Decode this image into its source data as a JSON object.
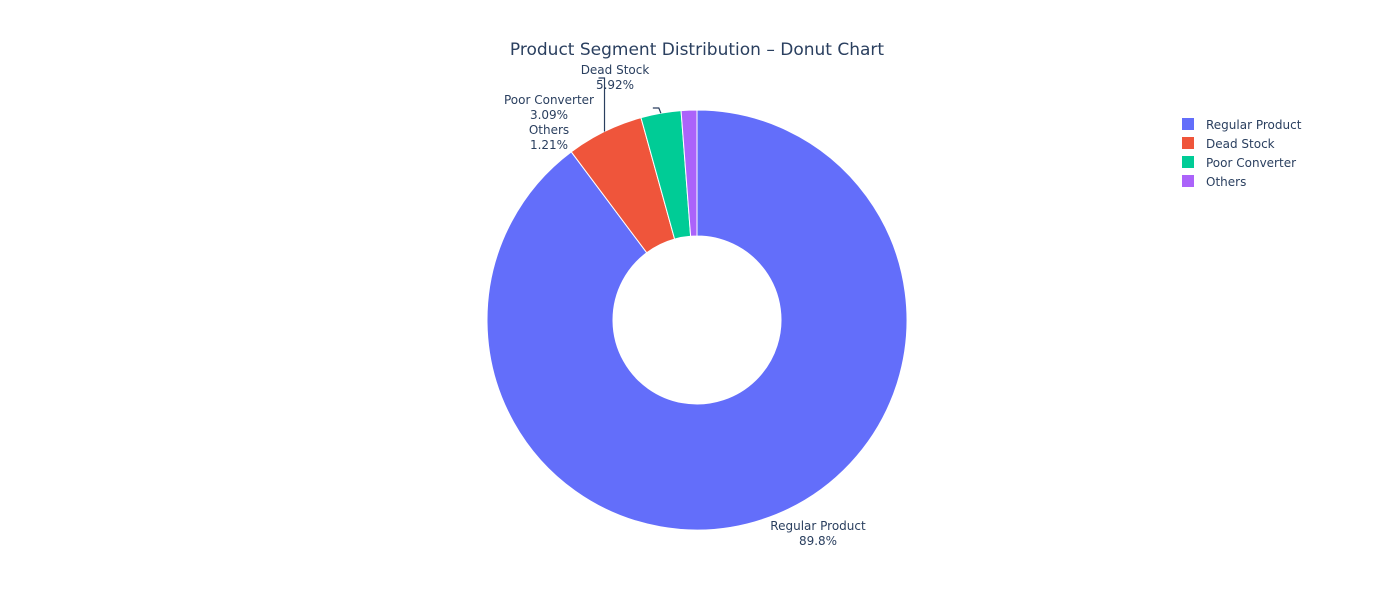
{
  "chart_data": {
    "type": "pie",
    "title": "Product Segment Distribution – Donut Chart",
    "hole": 0.4,
    "legend_position": "right",
    "slices": [
      {
        "label": "Regular Product",
        "value": 89.8,
        "text": "89.8%",
        "color": "#636efa"
      },
      {
        "label": "Dead Stock",
        "value": 5.92,
        "text": "5.92%",
        "color": "#ef553b"
      },
      {
        "label": "Poor Converter",
        "value": 3.09,
        "text": "3.09%",
        "color": "#00cc96"
      },
      {
        "label": "Others",
        "value": 1.21,
        "text": "1.21%",
        "color": "#ab63fa"
      }
    ]
  }
}
